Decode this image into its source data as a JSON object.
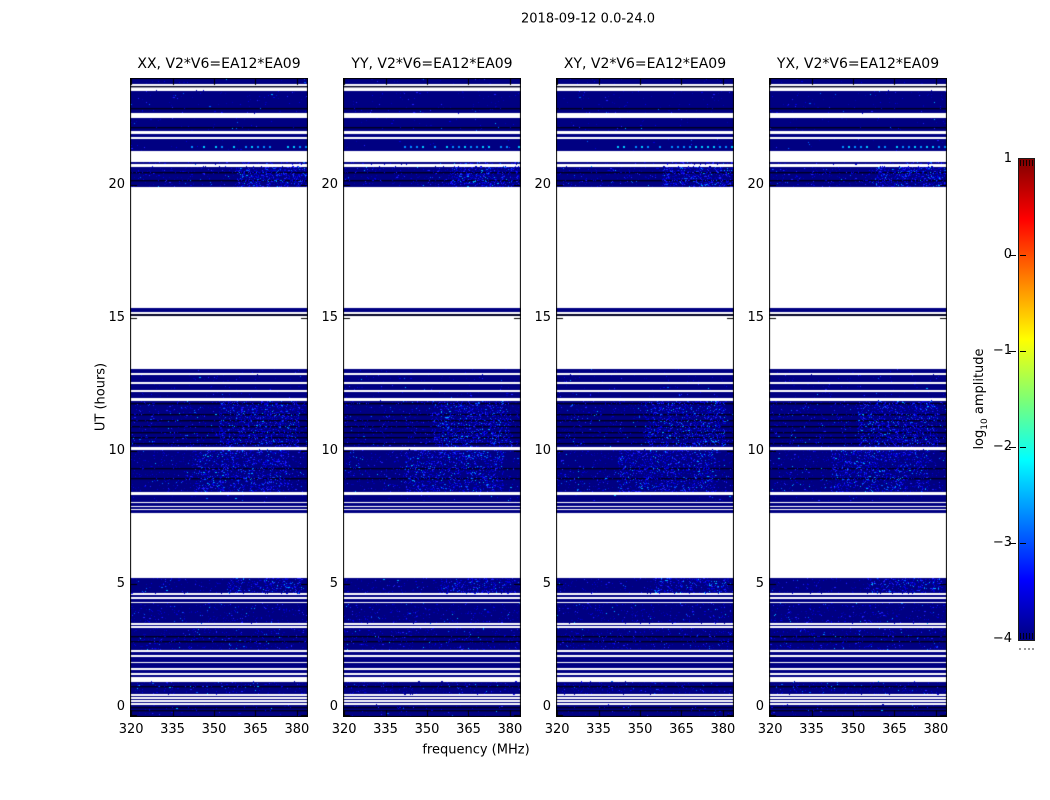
{
  "figure": {
    "suptitle": "2018-09-12 0.0-24.0",
    "xlabel": "frequency (MHz)",
    "ylabel": "UT (hours)",
    "background": "#ffffff"
  },
  "chart_data": {
    "type": "heatmap",
    "title": "2018-09-12 0.0-24.0",
    "panels": [
      {
        "id": "xx",
        "title": "XX, V2*V6=EA12*EA09"
      },
      {
        "id": "yy",
        "title": "YY, V2*V6=EA12*EA09"
      },
      {
        "id": "xy",
        "title": "XY, V2*V6=EA12*EA09"
      },
      {
        "id": "yx",
        "title": "YX, V2*V6=EA12*EA09"
      }
    ],
    "x_axis": {
      "label": "frequency (MHz)",
      "ticks": [
        320,
        335,
        350,
        365,
        380
      ],
      "range": [
        319.6,
        384.0
      ],
      "unit": "MHz"
    },
    "y_axis": {
      "label": "UT (hours)",
      "ticks": [
        0,
        5,
        10,
        15,
        20
      ],
      "range": [
        0,
        24
      ],
      "unit": "hours"
    },
    "colorbar": {
      "label_pre": "log",
      "label_sub": "10",
      "label_post": " amplitude",
      "ticks": [
        1,
        0,
        -1,
        -2,
        -3,
        -4
      ],
      "tick_labels": [
        "1",
        "0",
        "−1",
        "−2",
        "−3",
        "−4"
      ],
      "range": [
        -4,
        1
      ],
      "colormap": "jet",
      "stops": [
        [
          "#000080",
          0
        ],
        [
          "#0000ff",
          12.5
        ],
        [
          "#00ffff",
          37.5
        ],
        [
          "#7dff75",
          50
        ],
        [
          "#ffff00",
          62.5
        ],
        [
          "#ff0000",
          87.5
        ],
        [
          "#800000",
          100
        ]
      ]
    },
    "base_color": "#000082",
    "dark_line_color": "#000020",
    "dark_band_color": "#000025",
    "speckle_colors": [
      "#0000b0",
      "#0000e0",
      "#2222ff",
      "#0066ff",
      "#00b4ff"
    ],
    "time_bands": [
      {
        "start": 23.77,
        "end": 24.0,
        "speckle": 0.1
      },
      {
        "start": 22.67,
        "end": 23.52,
        "speckle": 0.12
      },
      {
        "start": 22.01,
        "end": 22.49,
        "speckle": 0.08
      },
      {
        "start": 21.8,
        "end": 21.89
      },
      {
        "start": 21.26,
        "end": 21.71,
        "speckle": 0.05,
        "dotrow": true
      },
      {
        "start": 20.76,
        "end": 20.83,
        "speckle": 0.3,
        "cluster": [
          0.62,
          0.99
        ]
      },
      {
        "start": 19.92,
        "end": 20.67,
        "speckle": 0.45,
        "cluster": [
          0.6,
          0.99
        ]
      },
      {
        "start": 15.21,
        "end": 15.36
      },
      {
        "start": 15.06,
        "end": 15.13,
        "dark": true
      },
      {
        "start": 12.93,
        "end": 13.07,
        "speckle": 0.08
      },
      {
        "start": 12.6,
        "end": 12.85,
        "speckle": 0.15
      },
      {
        "start": 12.28,
        "end": 12.5,
        "speckle": 0.12
      },
      {
        "start": 11.99,
        "end": 12.21,
        "speckle": 0.12
      },
      {
        "start": 10.15,
        "end": 11.87,
        "speckle": 0.4,
        "cluster": [
          0.5,
          0.95
        ]
      },
      {
        "start": 8.45,
        "end": 10.03,
        "speckle": 0.45,
        "cluster": [
          0.35,
          0.9
        ]
      },
      {
        "start": 8.09,
        "end": 8.34,
        "speckle": 0.1
      },
      {
        "start": 7.94,
        "end": 8.03
      },
      {
        "start": 7.81,
        "end": 7.88
      },
      {
        "start": 7.66,
        "end": 7.76
      },
      {
        "start": 4.65,
        "end": 5.21,
        "speckle": 0.35,
        "cluster": [
          0.55,
          0.97
        ]
      },
      {
        "start": 4.5,
        "end": 4.59
      },
      {
        "start": 4.33,
        "end": 4.44
      },
      {
        "start": 3.52,
        "end": 4.27,
        "speckle": 0.5
      },
      {
        "start": 3.4,
        "end": 3.46
      },
      {
        "start": 2.52,
        "end": 3.33,
        "speckle": 0.5
      },
      {
        "start": 2.33,
        "end": 2.45
      },
      {
        "start": 2.08,
        "end": 2.27
      },
      {
        "start": 1.83,
        "end": 2.02
      },
      {
        "start": 1.64,
        "end": 1.77
      },
      {
        "start": 1.51,
        "end": 1.58
      },
      {
        "start": 0.85,
        "end": 1.33,
        "speckle": 0.45
      },
      {
        "start": 0.74,
        "end": 0.79
      },
      {
        "start": 0.64,
        "end": 0.69
      },
      {
        "start": 0.51,
        "end": 0.57
      },
      {
        "start": 0.0,
        "end": 0.46,
        "speckle": 0.15
      }
    ],
    "dark_lines": [
      23.7,
      22.87,
      22.16,
      20.47,
      20.17,
      11.8,
      11.38,
      11.15,
      10.93,
      10.7,
      10.5,
      10.28,
      9.34,
      8.97,
      3.05,
      2.85,
      1.15,
      0.375,
      0.26
    ],
    "dot_row": {
      "hour": 21.45,
      "x_start": 0.34,
      "x_end": 0.99,
      "spacing": 6
    }
  }
}
